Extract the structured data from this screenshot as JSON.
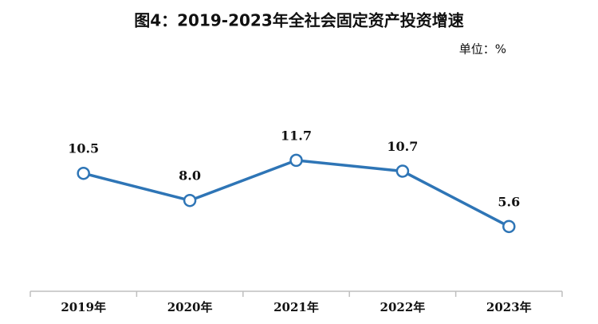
{
  "chart_data": {
    "type": "line",
    "title": "图4：2019-2023年全社会固定资产投资增速",
    "unit": "单位：%",
    "categories": [
      "2019年",
      "2020年",
      "2021年",
      "2022年",
      "2023年"
    ],
    "values": [
      10.5,
      8.0,
      11.7,
      10.7,
      5.6
    ],
    "value_labels": [
      "10.5",
      "8.0",
      "11.7",
      "10.7",
      "5.6"
    ],
    "color": "#2e75b6"
  }
}
